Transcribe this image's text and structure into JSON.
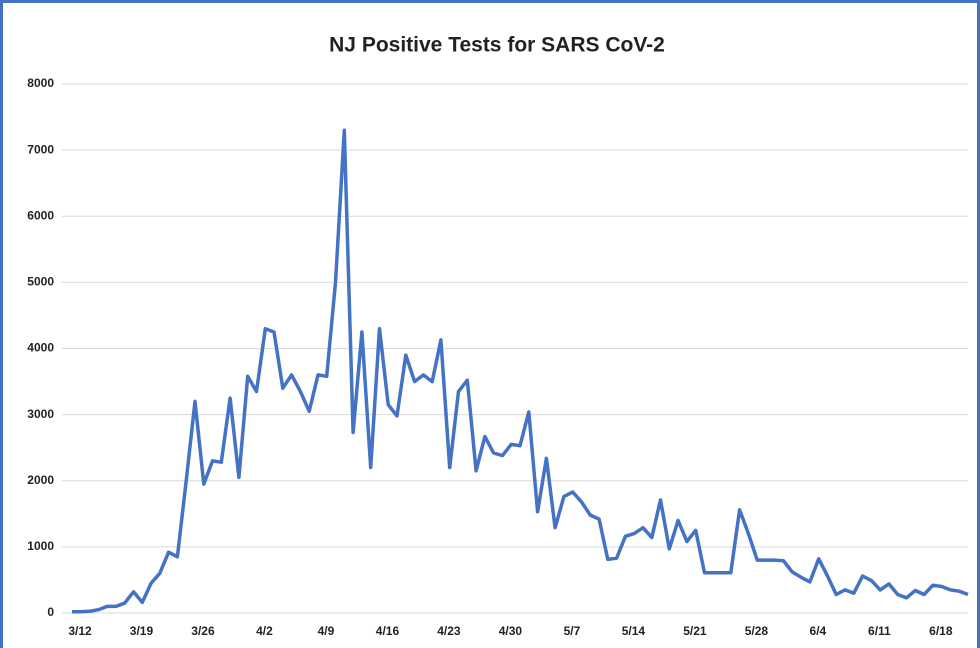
{
  "chart_data": {
    "type": "line",
    "title": "NJ Positive Tests for SARS CoV-2",
    "categories": [
      "3/12",
      null,
      null,
      null,
      null,
      null,
      null,
      "3/19",
      null,
      null,
      null,
      null,
      null,
      null,
      "3/26",
      null,
      null,
      null,
      null,
      null,
      null,
      "4/2",
      null,
      null,
      null,
      null,
      null,
      null,
      "4/9",
      null,
      null,
      null,
      null,
      null,
      null,
      "4/16",
      null,
      null,
      null,
      null,
      null,
      null,
      "4/23",
      null,
      null,
      null,
      null,
      null,
      null,
      "4/30",
      null,
      null,
      null,
      null,
      null,
      null,
      "5/7",
      null,
      null,
      null,
      null,
      null,
      null,
      "5/14",
      null,
      null,
      null,
      null,
      null,
      null,
      "5/21",
      null,
      null,
      null,
      null,
      null,
      null,
      "5/28",
      null,
      null,
      null,
      null,
      null,
      null,
      "6/4",
      null,
      null,
      null,
      null,
      null,
      null,
      "6/11",
      null,
      null,
      null,
      null,
      null,
      null,
      "6/18",
      null,
      null,
      null,
      null
    ],
    "series": [
      {
        "name": "Positive Tests",
        "color": "#4472c4",
        "values": [
          20,
          20,
          25,
          50,
          100,
          100,
          150,
          320,
          160,
          450,
          600,
          920,
          850,
          2000,
          3200,
          1950,
          2300,
          2280,
          3250,
          2050,
          3580,
          3350,
          4300,
          4250,
          3400,
          3600,
          3350,
          3050,
          3600,
          3580,
          5000,
          7300,
          2730,
          4250,
          2200,
          4300,
          3150,
          2980,
          3900,
          3500,
          3600,
          3500,
          4130,
          2200,
          3350,
          3520,
          2150,
          2670,
          2420,
          2380,
          2550,
          2530,
          3040,
          1530,
          2340,
          1290,
          1760,
          1830,
          1680,
          1480,
          1420,
          810,
          830,
          1160,
          1200,
          1290,
          1140,
          1710,
          970,
          1400,
          1080,
          1250,
          610,
          610,
          610,
          610,
          1560,
          1200,
          800,
          800,
          800,
          790,
          620,
          540,
          470,
          820,
          560,
          280,
          350,
          300,
          560,
          490,
          350,
          440,
          280,
          230,
          340,
          280,
          420,
          400,
          350,
          330,
          280
        ]
      }
    ],
    "ylim": [
      0,
      8000
    ],
    "yticks": [
      0,
      1000,
      2000,
      3000,
      4000,
      5000,
      6000,
      7000,
      8000
    ],
    "grid": true
  }
}
